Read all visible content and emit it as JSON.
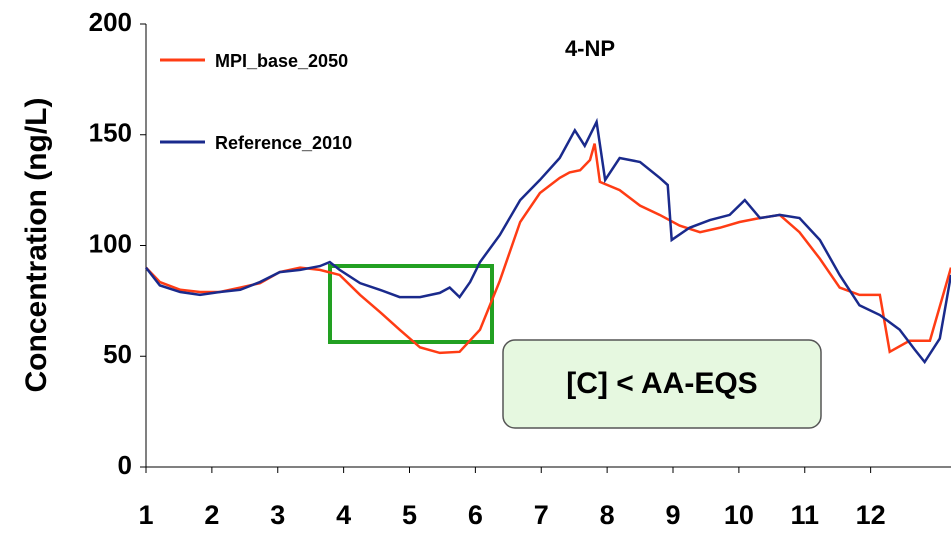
{
  "chart_data": {
    "type": "line",
    "title": "4-NP",
    "y_label": "Concentration (ng/L)",
    "annotation": "[C] < AA-EQS",
    "xlim": [
      1,
      13.22
    ],
    "xticks": [
      1,
      2,
      3,
      4,
      5,
      6,
      7,
      8,
      9,
      10,
      11,
      12
    ],
    "ylim": [
      0,
      200
    ],
    "yticks": [
      0,
      50,
      100,
      150,
      200
    ],
    "legend": "upper-left",
    "series": [
      {
        "name": "MPI_base_2050",
        "color": "#ff3c14",
        "x": [
          1,
          1.21,
          1.52,
          1.82,
          2.12,
          2.43,
          2.73,
          3.03,
          3.34,
          3.64,
          3.94,
          4.25,
          4.55,
          4.85,
          5.16,
          5.46,
          5.76,
          6.07,
          6.37,
          6.68,
          6.98,
          7.28,
          7.43,
          7.59,
          7.74,
          7.81,
          7.89,
          8.19,
          8.5,
          8.8,
          9.1,
          9.41,
          9.71,
          10.01,
          10.32,
          10.62,
          10.92,
          11.23,
          11.53,
          11.83,
          12.14,
          12.29,
          12.59,
          12.9,
          13.22
        ],
        "values": [
          90,
          83.5,
          80,
          79,
          79,
          81,
          83,
          88,
          90,
          89,
          86.7,
          77.7,
          70,
          62,
          54,
          51.5,
          52,
          62,
          84,
          110.6,
          123.7,
          130.5,
          133,
          134,
          138.6,
          146,
          128.7,
          125,
          118,
          113.8,
          109,
          106,
          108,
          110.6,
          112.4,
          113.8,
          106,
          94,
          81,
          77.7,
          77.7,
          52,
          57,
          57,
          90
        ]
      },
      {
        "name": "Reference_2010",
        "color": "#1a2a8c",
        "x": [
          1,
          1.21,
          1.52,
          1.82,
          2.12,
          2.43,
          2.73,
          3.03,
          3.34,
          3.64,
          3.79,
          3.94,
          4.25,
          4.55,
          4.85,
          5.16,
          5.46,
          5.61,
          5.76,
          5.92,
          6.07,
          6.37,
          6.68,
          6.98,
          7.28,
          7.51,
          7.66,
          7.84,
          7.97,
          8.19,
          8.5,
          8.8,
          8.92,
          8.98,
          9.25,
          9.56,
          9.86,
          10.09,
          10.32,
          10.62,
          10.92,
          11.23,
          11.53,
          11.83,
          12.14,
          12.44,
          12.67,
          12.82,
          13.05,
          13.22
        ],
        "values": [
          90,
          82,
          79,
          77.7,
          79,
          80,
          83.5,
          88,
          89,
          90.7,
          92.5,
          89,
          83,
          80,
          76.7,
          76.7,
          78.6,
          81,
          76.7,
          83.5,
          92.5,
          104.7,
          120.5,
          129.6,
          139.5,
          152,
          145,
          155.8,
          129.6,
          139.5,
          137.7,
          130.5,
          127.3,
          102.5,
          108,
          111.5,
          113.8,
          120.5,
          112.4,
          113.8,
          112.4,
          102.5,
          86.7,
          73,
          68.6,
          62,
          53,
          47.4,
          58,
          86.7
        ]
      }
    ]
  }
}
